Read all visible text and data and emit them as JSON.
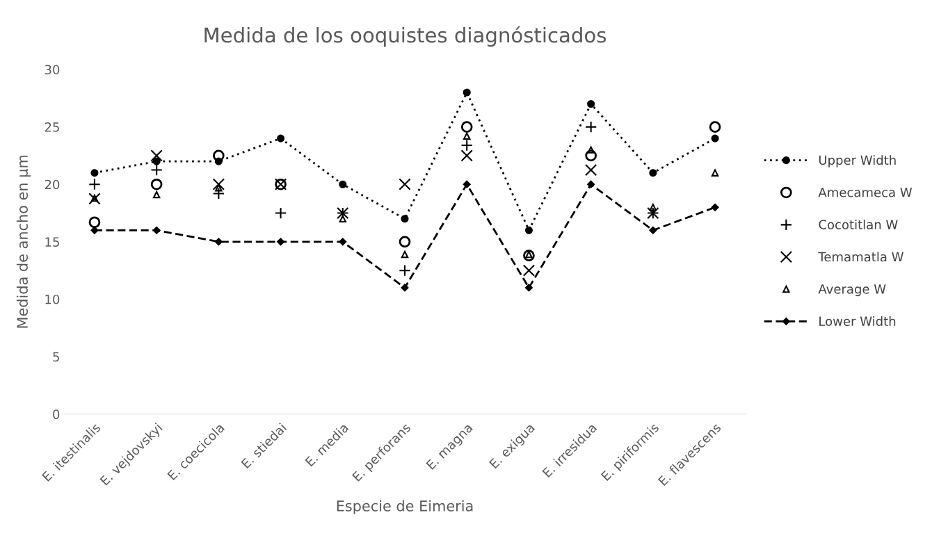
{
  "chart_data": {
    "type": "line",
    "title": "Medida de los ooquistes diagnósticados",
    "xlabel": "Especie de Eimeria",
    "ylabel": "Medida de ancho en µm",
    "categories": [
      "E. itestinalis",
      "E. vejdovskyi",
      "E. coecicola",
      "E. stiedai",
      "E. media",
      "E. perforans",
      "E. magna",
      "E. exigua",
      "E. irresidua",
      "E. piriformis",
      "E. flavescens"
    ],
    "ylim": [
      0,
      30
    ],
    "yticks": [
      0,
      5,
      10,
      15,
      20,
      25,
      30
    ],
    "grid": false,
    "legend": "right",
    "series": [
      {
        "name": "Upper Width",
        "color": "#000000",
        "marker": "circle",
        "line_style": "dotted",
        "values": [
          21,
          22,
          22,
          24,
          20,
          17,
          28,
          16,
          27,
          21,
          24
        ]
      },
      {
        "name": "Amecameca W",
        "type": "scatter",
        "color": "#000000",
        "marker": "open_circle",
        "values": [
          16.7,
          20,
          22.5,
          20,
          null,
          15,
          25,
          13.8,
          22.5,
          null,
          25
        ]
      },
      {
        "name": "Cocotitlan W",
        "type": "scatter",
        "color": "#000000",
        "marker": "plus",
        "values": [
          20,
          21.25,
          19.2,
          17.5,
          17.5,
          12.5,
          23.4,
          null,
          25,
          17.5,
          null
        ]
      },
      {
        "name": "Temamatla W",
        "type": "scatter",
        "color": "#000000",
        "marker": "cross",
        "values": [
          18.75,
          22.5,
          20,
          20,
          17.5,
          20,
          22.5,
          12.5,
          21.25,
          17.5,
          null
        ]
      },
      {
        "name": "Average W",
        "type": "scatter",
        "color": "#000000",
        "marker": "triangle",
        "values": [
          18.8,
          19.1,
          19.7,
          null,
          17,
          13.9,
          24.2,
          13.9,
          23,
          18,
          21
        ]
      },
      {
        "name": "Lower Width",
        "color": "#000000",
        "marker": "diamond",
        "line_style": "dashed",
        "values": [
          16,
          16,
          15,
          15,
          15,
          11,
          20,
          11,
          20,
          16,
          18
        ]
      }
    ]
  }
}
